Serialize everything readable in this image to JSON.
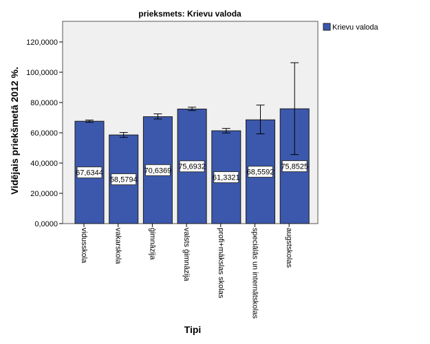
{
  "chart_data": {
    "type": "bar",
    "title": "prieksmets: Krievu valoda",
    "xlabel": "Tipi",
    "ylabel": "Vidējais priekšmetā 2012 %.",
    "ylim": [
      0,
      132000
    ],
    "yticks": [
      0,
      20000,
      40000,
      60000,
      80000,
      100000,
      120000
    ],
    "ytick_labels": [
      "0,0000",
      "20,0000",
      "40,0000",
      "60,0000",
      "80,0000",
      "100,0000",
      "120,0000"
    ],
    "legend": {
      "position": "top-right",
      "entries": [
        "Krievu valoda"
      ]
    },
    "color": "#3c58ad",
    "categories": [
      "vidusskola",
      "vakarskola",
      "ģimnāzija",
      "valsts ģimnāzija",
      "profi+mākslas skolas",
      "speciālās un internātskolas",
      "augstskolas"
    ],
    "series": [
      {
        "name": "Krievu valoda",
        "values": [
          67634.4,
          58579.4,
          70636.9,
          75693.2,
          61332.1,
          68559.2,
          75852.5
        ],
        "value_labels": [
          "67,6344",
          "58,5794",
          "70,6369",
          "75,6932",
          "61,3321",
          "68,5592",
          "75,8525"
        ],
        "error_low": [
          66900,
          57000,
          69100,
          74700,
          59900,
          59300,
          45600
        ],
        "error_high": [
          68400,
          60200,
          72500,
          76900,
          62900,
          78300,
          106300
        ]
      }
    ]
  }
}
